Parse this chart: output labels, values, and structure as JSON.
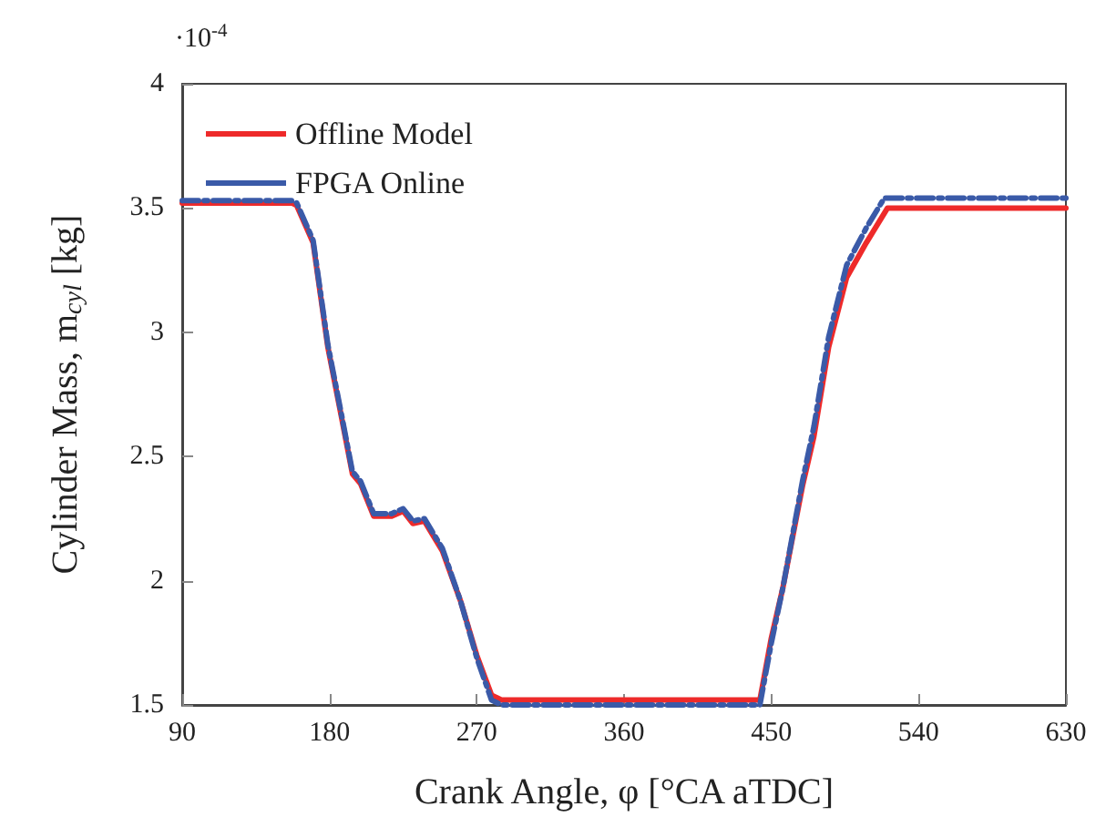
{
  "chart_data": {
    "type": "line",
    "xlabel": "Crank Angle, φ [°CA aTDC]",
    "ylabel": "Cylinder Mass, m$_{cyl}$ [kg]",
    "annotations": [
      "·10$^{-4}$"
    ],
    "xlim": [
      90,
      630
    ],
    "xticks": [
      90,
      180,
      270,
      360,
      450,
      540,
      630
    ],
    "ylim": [
      1.5,
      4
    ],
    "yticks": [
      1.5,
      2,
      2.5,
      3,
      3.5,
      4
    ],
    "grid": false,
    "legend": "top left",
    "marker": "none",
    "series": [
      {
        "name": "Offline Model",
        "color": "#ee2a2a",
        "line_style": "solid",
        "x": [
          90,
          157,
          160,
          170,
          179,
          187,
          194,
          199,
          207,
          218,
          225,
          231,
          238,
          249,
          260,
          270,
          279,
          285,
          443,
          450,
          457,
          469,
          476,
          485,
          496,
          508,
          521,
          630
        ],
        "values": [
          3.52,
          3.52,
          3.51,
          3.36,
          2.94,
          2.67,
          2.43,
          2.39,
          2.26,
          2.26,
          2.28,
          2.23,
          2.24,
          2.12,
          1.92,
          1.7,
          1.54,
          1.52,
          1.52,
          1.77,
          1.97,
          2.38,
          2.58,
          2.94,
          3.22,
          3.36,
          3.5,
          3.5
        ]
      },
      {
        "name": "FPGA Online",
        "color": "#3a5aa8",
        "line_style": "dashed",
        "x": [
          90,
          157,
          160,
          170,
          179,
          187,
          194,
          199,
          207,
          218,
          225,
          231,
          238,
          249,
          260,
          270,
          279,
          285,
          443,
          450,
          457,
          469,
          476,
          485,
          496,
          508,
          519,
          630
        ],
        "values": [
          3.53,
          3.53,
          3.52,
          3.37,
          2.95,
          2.68,
          2.44,
          2.4,
          2.27,
          2.27,
          2.29,
          2.24,
          2.25,
          2.13,
          1.92,
          1.69,
          1.52,
          1.5,
          1.5,
          1.75,
          1.97,
          2.4,
          2.62,
          2.98,
          3.27,
          3.42,
          3.54,
          3.54
        ]
      }
    ]
  }
}
